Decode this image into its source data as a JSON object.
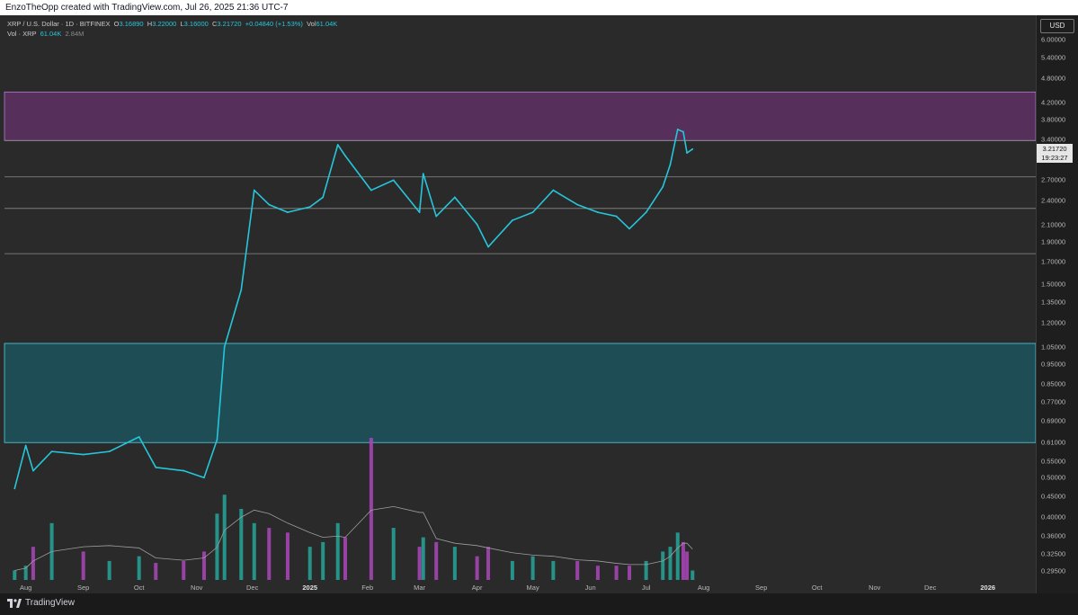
{
  "header": {
    "attribution": "EnzoTheOpp created with TradingView.com, Jul 26, 2025 21:36 UTC-7"
  },
  "legend": {
    "symbol": "XRP / U.S. Dollar · 1D · BITFINEX",
    "open_label": "O",
    "open": "3.16890",
    "high_label": "H",
    "high": "3.22000",
    "low_label": "L",
    "low": "3.16000",
    "close_label": "C",
    "close": "3.21720",
    "change": "+0.04840 (+1.53%)",
    "vol_label": "Vol",
    "vol": "61.04K",
    "vol_series_label": "Vol · XRP",
    "vol_value": "61.04K",
    "vol_ma": "2.84M"
  },
  "price_axis": {
    "currency": "USD",
    "ticks": [
      "6.00000",
      "5.40000",
      "4.80000",
      "4.20000",
      "3.80000",
      "3.40000",
      "2.70000",
      "2.40000",
      "2.10000",
      "1.90000",
      "1.70000",
      "1.50000",
      "1.35000",
      "1.20000",
      "1.05000",
      "0.95000",
      "0.85000",
      "0.77000",
      "0.69000",
      "0.61000",
      "0.55000",
      "0.50000",
      "0.45000",
      "0.40000",
      "0.36000",
      "0.32500",
      "0.29500"
    ],
    "last_price": "3.21720",
    "countdown": "19:23:27"
  },
  "time_axis": {
    "labels": [
      {
        "text": "Aug",
        "bold": false
      },
      {
        "text": "Sep",
        "bold": false
      },
      {
        "text": "Oct",
        "bold": false
      },
      {
        "text": "Nov",
        "bold": false
      },
      {
        "text": "Dec",
        "bold": false
      },
      {
        "text": "2025",
        "bold": true
      },
      {
        "text": "Feb",
        "bold": false
      },
      {
        "text": "Mar",
        "bold": false
      },
      {
        "text": "Apr",
        "bold": false
      },
      {
        "text": "May",
        "bold": false
      },
      {
        "text": "Jun",
        "bold": false
      },
      {
        "text": "Jul",
        "bold": false
      },
      {
        "text": "Aug",
        "bold": false
      },
      {
        "text": "Sep",
        "bold": false
      },
      {
        "text": "Oct",
        "bold": false
      },
      {
        "text": "Nov",
        "bold": false
      },
      {
        "text": "Dec",
        "bold": false
      },
      {
        "text": "2026",
        "bold": true
      }
    ]
  },
  "footer": {
    "brand": "TradingView"
  },
  "colors": {
    "background": "#2a2a2a",
    "price_line": "#26c6da",
    "resistance_zone": "#56305a",
    "support_zone": "#1f4d56",
    "vol_up": "#26a69a",
    "vol_down": "#ab47bc",
    "vol_ma": "#9e9e9e"
  },
  "chart_data": {
    "type": "line",
    "title": "XRP / U.S. Dollar · 1D · BITFINEX",
    "yscale": "log",
    "ylim": [
      0.28,
      6.6
    ],
    "x": [
      "2024-07-26",
      "2024-08-01",
      "2024-08-05",
      "2024-08-15",
      "2024-09-01",
      "2024-09-15",
      "2024-10-01",
      "2024-10-10",
      "2024-10-25",
      "2024-11-05",
      "2024-11-12",
      "2024-11-16",
      "2024-11-25",
      "2024-12-02",
      "2024-12-10",
      "2024-12-20",
      "2025-01-01",
      "2025-01-08",
      "2025-01-16",
      "2025-01-20",
      "2025-02-03",
      "2025-02-15",
      "2025-03-01",
      "2025-03-03",
      "2025-03-10",
      "2025-03-20",
      "2025-04-01",
      "2025-04-07",
      "2025-04-20",
      "2025-05-01",
      "2025-05-12",
      "2025-05-25",
      "2025-06-05",
      "2025-06-15",
      "2025-06-22",
      "2025-07-01",
      "2025-07-10",
      "2025-07-14",
      "2025-07-18",
      "2025-07-21",
      "2025-07-23",
      "2025-07-26"
    ],
    "values": [
      0.47,
      0.6,
      0.52,
      0.58,
      0.57,
      0.58,
      0.63,
      0.53,
      0.52,
      0.5,
      0.62,
      1.05,
      1.45,
      2.55,
      2.35,
      2.25,
      2.32,
      2.45,
      3.3,
      3.1,
      2.55,
      2.7,
      2.25,
      2.8,
      2.2,
      2.45,
      2.1,
      1.85,
      2.15,
      2.25,
      2.55,
      2.35,
      2.25,
      2.2,
      2.05,
      2.25,
      2.6,
      2.95,
      3.6,
      3.55,
      3.15,
      3.22
    ],
    "zones": [
      {
        "name": "resistance",
        "from": 3.38,
        "to": 4.45
      },
      {
        "name": "support",
        "from": 0.61,
        "to": 1.07
      }
    ],
    "levels": [
      3.38,
      2.75,
      2.3,
      1.78
    ],
    "volume": [
      0.1,
      0.15,
      0.35,
      0.6,
      0.3,
      0.2,
      0.25,
      0.18,
      0.2,
      0.3,
      0.7,
      0.9,
      0.75,
      0.6,
      0.55,
      0.5,
      0.35,
      0.4,
      0.6,
      0.45,
      1.5,
      0.55,
      0.35,
      0.45,
      0.4,
      0.35,
      0.25,
      0.35,
      0.2,
      0.25,
      0.2,
      0.2,
      0.15,
      0.15,
      0.15,
      0.2,
      0.3,
      0.35,
      0.5,
      0.4,
      0.3,
      0.1
    ],
    "volume_ma_label": "2.84M"
  }
}
